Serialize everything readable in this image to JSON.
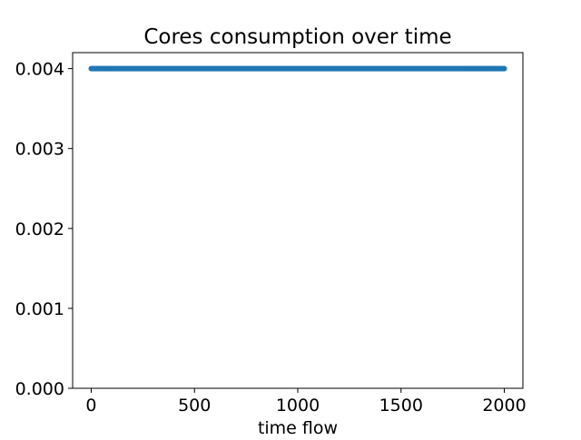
{
  "chart_data": {
    "type": "line",
    "title": "Cores consumption over time",
    "xlabel": "time flow",
    "ylabel": "",
    "xlim": [
      -90,
      2090
    ],
    "ylim": [
      0.0,
      0.0042
    ],
    "xticks": [
      0,
      500,
      1000,
      1500,
      2000
    ],
    "xtick_labels": [
      "0",
      "500",
      "1000",
      "1500",
      "2000"
    ],
    "yticks": [
      0.0,
      0.001,
      0.002,
      0.003,
      0.004
    ],
    "ytick_labels": [
      "0.000",
      "0.001",
      "0.002",
      "0.003",
      "0.004"
    ],
    "grid": false,
    "legend": "none",
    "series": [
      {
        "color": "#1f77b4",
        "x": [
          0,
          2000
        ],
        "values": [
          0.004,
          0.004
        ]
      }
    ]
  }
}
